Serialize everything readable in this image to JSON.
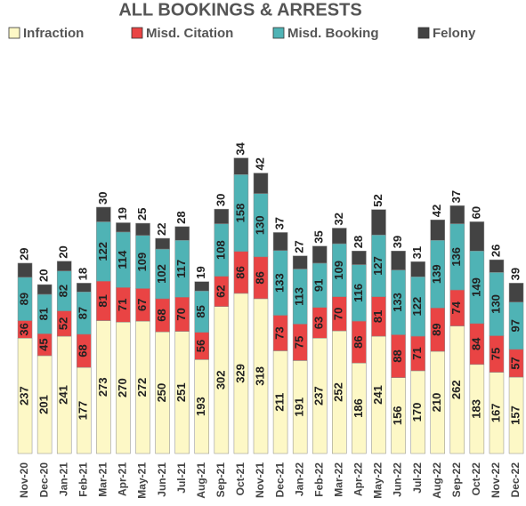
{
  "chart_data": {
    "type": "stacked_bar",
    "title": "ALL BOOKINGS & ARRESTS",
    "categories": [
      "Nov-20",
      "Dec-20",
      "Jan-21",
      "Feb-21",
      "Mar-21",
      "Apr-21",
      "May-21",
      "Jun-21",
      "Jul-21",
      "Aug-21",
      "Sep-21",
      "Oct-21",
      "Nov-21",
      "Dec-21",
      "Jan-22",
      "Feb-22",
      "Mar-22",
      "Apr-22",
      "May-22",
      "Jun-22",
      "Jul-22",
      "Aug-22",
      "Sep-22",
      "Oct-22",
      "Nov-22",
      "Dec-22"
    ],
    "series": [
      {
        "name": "Infraction",
        "color": "#fdf8c6",
        "values": [
          237,
          201,
          241,
          177,
          273,
          270,
          272,
          250,
          251,
          193,
          302,
          329,
          318,
          211,
          191,
          237,
          252,
          186,
          241,
          156,
          170,
          210,
          262,
          183,
          167,
          157
        ]
      },
      {
        "name": "Misd. Citation",
        "color": "#e94444",
        "values": [
          36,
          45,
          52,
          68,
          81,
          71,
          67,
          68,
          70,
          56,
          62,
          86,
          86,
          73,
          75,
          63,
          70,
          86,
          81,
          88,
          71,
          89,
          74,
          84,
          75,
          57
        ]
      },
      {
        "name": "Misd. Booking",
        "color": "#4fb3b5",
        "values": [
          89,
          81,
          82,
          87,
          122,
          114,
          109,
          102,
          117,
          85,
          108,
          158,
          130,
          133,
          113,
          91,
          109,
          116,
          127,
          133,
          122,
          139,
          136,
          149,
          130,
          97
        ]
      },
      {
        "name": "Felony",
        "color": "#434343",
        "values": [
          29,
          20,
          20,
          18,
          30,
          19,
          25,
          22,
          28,
          19,
          30,
          34,
          42,
          37,
          27,
          35,
          32,
          28,
          52,
          39,
          31,
          42,
          37,
          60,
          26,
          39
        ]
      }
    ],
    "ylim": [
      0,
      800
    ]
  }
}
